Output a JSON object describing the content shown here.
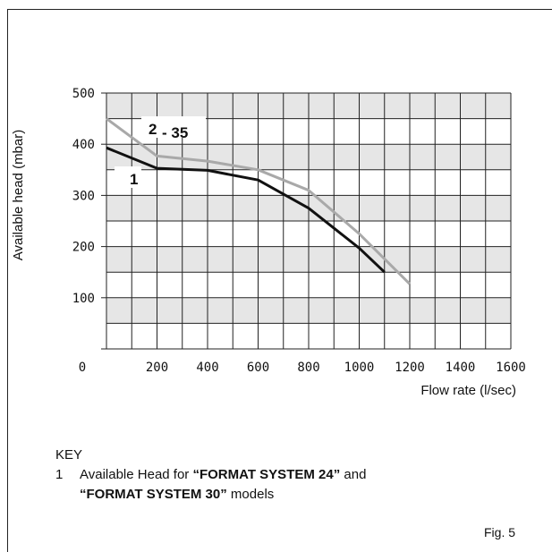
{
  "chart_data": {
    "type": "line",
    "xlabel": "Flow rate (l/sec)",
    "ylabel": "Available head (mbar)",
    "xlim": [
      0,
      1600
    ],
    "ylim": [
      0,
      500
    ],
    "x_ticks": [
      "0",
      "200",
      "400",
      "600",
      "800",
      "1000",
      "1200",
      "1400",
      "1600"
    ],
    "y_ticks": [
      "100",
      "200",
      "300",
      "400",
      "500"
    ],
    "grid": true,
    "alternating_bands": true,
    "series": [
      {
        "name": "1",
        "color": "#111111",
        "points": [
          [
            0,
            393
          ],
          [
            200,
            353
          ],
          [
            400,
            349
          ],
          [
            600,
            330
          ],
          [
            800,
            275
          ],
          [
            1000,
            197
          ],
          [
            1100,
            150
          ]
        ]
      },
      {
        "name": "2",
        "name_suffix": "- 35",
        "color": "#a9a9a9",
        "points": [
          [
            0,
            450
          ],
          [
            200,
            377
          ],
          [
            400,
            367
          ],
          [
            600,
            350
          ],
          [
            800,
            310
          ],
          [
            1000,
            225
          ],
          [
            1200,
            127
          ]
        ]
      }
    ]
  },
  "key": {
    "title": "KEY",
    "items": [
      {
        "number": "1",
        "text_before": "Available Head for ",
        "bold1": "“FORMAT SYSTEM 24”",
        "text_middle": " and",
        "bold2": "“FORMAT SYSTEM 30”",
        "text_after": " models"
      }
    ]
  },
  "figure_label": "Fig. 5"
}
